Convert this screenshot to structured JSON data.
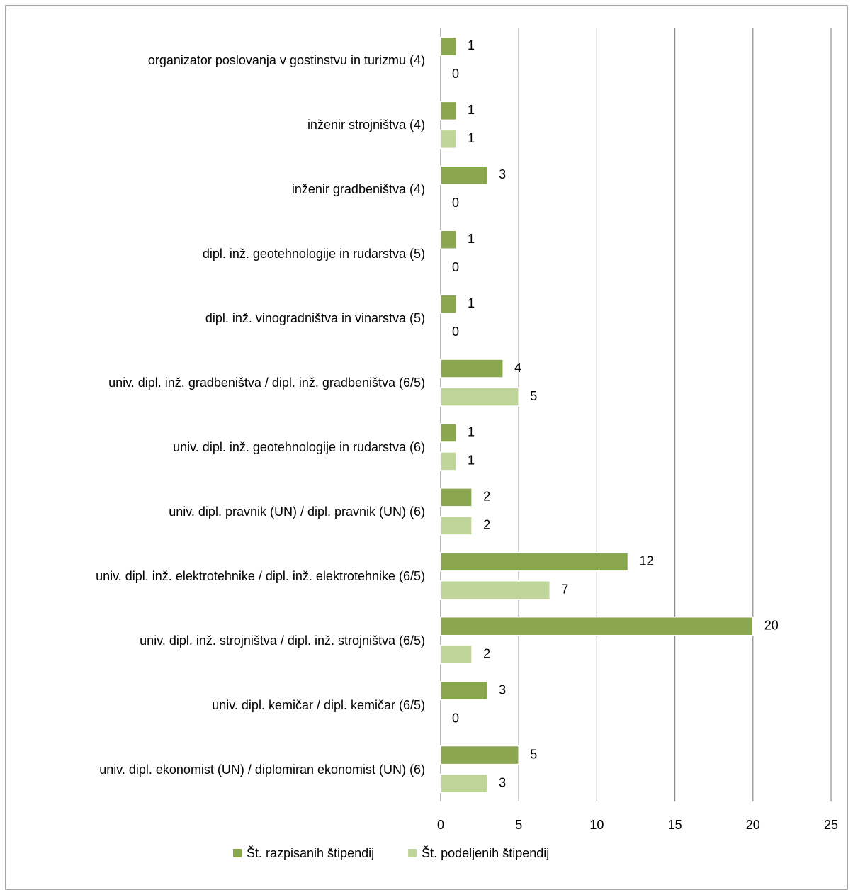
{
  "chart_data": {
    "type": "bar",
    "orientation": "horizontal",
    "categories": [
      "organizator poslovanja v gostinstvu in turizmu (4)",
      "inženir strojništva (4)",
      "inženir gradbeništva (4)",
      "dipl. inž. geotehnologije in rudarstva (5)",
      "dipl. inž. vinogradništva in vinarstva (5)",
      "univ. dipl. inž. gradbeništva / dipl. inž. gradbeništva (6/5)",
      "univ. dipl. inž. geotehnologije in rudarstva (6)",
      "univ. dipl. pravnik (UN) / dipl. pravnik (UN) (6)",
      "univ. dipl. inž. elektrotehnike / dipl. inž. elektrotehnike (6/5)",
      "univ. dipl. inž. strojništva / dipl. inž. strojništva (6/5)",
      "univ. dipl. kemičar / dipl. kemičar (6/5)",
      "univ. dipl. ekonomist (UN) / diplomiran ekonomist (UN) (6)"
    ],
    "series": [
      {
        "name": "Št. razpisanih štipendij",
        "color": "#8aa64e",
        "values": [
          1,
          1,
          3,
          1,
          1,
          4,
          1,
          2,
          12,
          20,
          3,
          5
        ]
      },
      {
        "name": "Št. podeljenih štipendij",
        "color": "#c0d59a",
        "values": [
          0,
          1,
          0,
          0,
          0,
          5,
          1,
          2,
          7,
          2,
          0,
          3
        ]
      }
    ],
    "xlim": [
      0,
      25
    ],
    "xticks": [
      0,
      5,
      10,
      15,
      20,
      25
    ],
    "grid": true,
    "legend": "bottom"
  }
}
